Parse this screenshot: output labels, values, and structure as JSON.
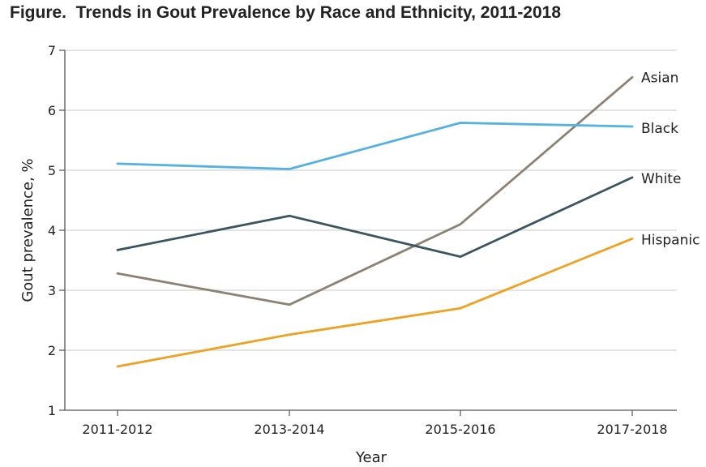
{
  "figure_title": "Figure.  Trends in Gout Prevalence by Race and Ethnicity, 2011-2018",
  "chart_data": {
    "type": "line",
    "title": "Trends in Gout Prevalence by Race and Ethnicity, 2011-2018",
    "xlabel": "Year",
    "ylabel": "Gout prevalence, %",
    "categories": [
      "2011-2012",
      "2013-2014",
      "2015-2016",
      "2017-2018"
    ],
    "ylim": [
      1,
      7
    ],
    "yticks": [
      1,
      2,
      3,
      4,
      5,
      6,
      7
    ],
    "grid": true,
    "legend": "inline labels at line ends (right)",
    "series": [
      {
        "name": "Asian",
        "values": [
          3.28,
          2.76,
          4.1,
          6.55
        ],
        "color": "#8c8173"
      },
      {
        "name": "Black",
        "values": [
          5.11,
          5.02,
          5.79,
          5.73
        ],
        "color": "#55b1e1"
      },
      {
        "name": "White",
        "values": [
          3.67,
          4.24,
          3.56,
          4.88
        ],
        "color": "#3b5560"
      },
      {
        "name": "Hispanic",
        "values": [
          1.73,
          2.26,
          2.7,
          3.86
        ],
        "color": "#eda224"
      }
    ]
  }
}
